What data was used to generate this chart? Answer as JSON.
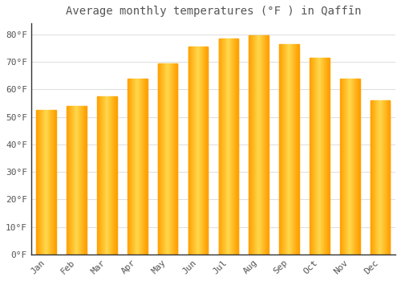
{
  "title": "Average monthly temperatures (°F ) in Qaffīn",
  "months": [
    "Jan",
    "Feb",
    "Mar",
    "Apr",
    "May",
    "Jun",
    "Jul",
    "Aug",
    "Sep",
    "Oct",
    "Nov",
    "Dec"
  ],
  "values": [
    52.5,
    54.0,
    57.5,
    64.0,
    69.5,
    75.5,
    78.5,
    79.5,
    76.5,
    71.5,
    64.0,
    56.0
  ],
  "bar_color_light": "#FFD84D",
  "bar_color_dark": "#FFA000",
  "background_color": "#ffffff",
  "grid_color": "#e0e0e0",
  "text_color": "#555555",
  "ytick_labels": [
    "0°F",
    "10°F",
    "20°F",
    "30°F",
    "40°F",
    "50°F",
    "60°F",
    "70°F",
    "80°F"
  ],
  "ytick_values": [
    0,
    10,
    20,
    30,
    40,
    50,
    60,
    70,
    80
  ],
  "ylim": [
    0,
    84
  ],
  "title_fontsize": 10,
  "tick_fontsize": 8,
  "bar_width": 0.65
}
